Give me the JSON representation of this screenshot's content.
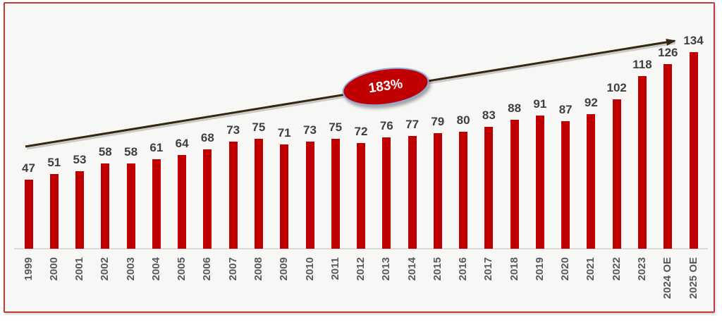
{
  "chart_data": {
    "type": "bar",
    "title": "",
    "xlabel": "",
    "ylabel": "",
    "ylim": [
      0,
      140
    ],
    "grid": false,
    "legend": false,
    "categories": [
      "1999",
      "2000",
      "2001",
      "2002",
      "2003",
      "2004",
      "2005",
      "2006",
      "2007",
      "2008",
      "2009",
      "2010",
      "2011",
      "2012",
      "2013",
      "2014",
      "2015",
      "2016",
      "2017",
      "2018",
      "2019",
      "2020",
      "2021",
      "2022",
      "2023",
      "2024 OE",
      "2025 OE"
    ],
    "values": [
      47,
      51,
      53,
      58,
      58,
      61,
      64,
      68,
      73,
      75,
      71,
      73,
      75,
      72,
      76,
      77,
      79,
      80,
      83,
      88,
      91,
      87,
      92,
      102,
      118,
      126,
      134
    ],
    "annotation": "183%",
    "colors": {
      "bar": "#c00000",
      "value_label": "#3f3f3f",
      "axis_label": "#595959",
      "baseline": "#d9d9d9",
      "arrow": "#33280f",
      "annotation_fill": "#c00000",
      "annotation_border": "#8faadc",
      "annotation_text": "#ffffff",
      "frame_border": "#c13b3b",
      "background": "#f7f7f6"
    }
  }
}
